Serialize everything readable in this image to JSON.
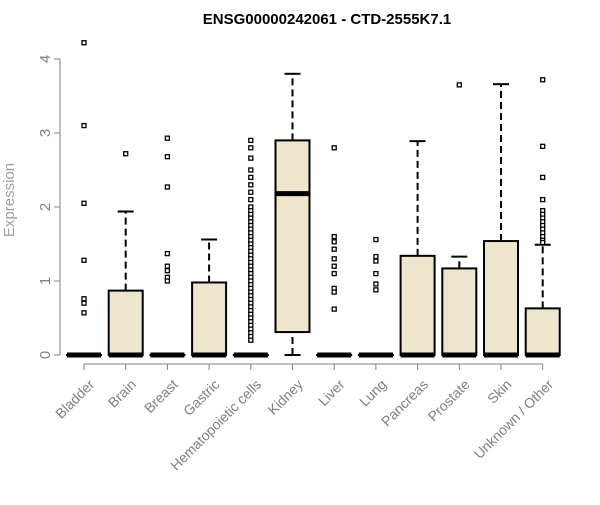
{
  "chart_data": {
    "type": "boxplot",
    "title": "ENSG00000242061 - CTD-2555K7.1",
    "ylabel": "Expression",
    "xlabel": "",
    "ylim": [
      0,
      4.2
    ],
    "yticks": [
      0,
      1,
      2,
      3,
      4
    ],
    "ytick_labels": [
      "0",
      "1",
      "2",
      "3",
      "4"
    ],
    "grid": false,
    "colors": {
      "box_fill": "#ede6cd",
      "stroke": "#000000",
      "axis": "#808080",
      "tick_text": "#808080"
    },
    "categories": [
      "Bladder",
      "Brain",
      "Breast",
      "Gastric",
      "Hematopoietic cells",
      "Kidney",
      "Liver",
      "Lung",
      "Pancreas",
      "Prostate",
      "Skin",
      "Unknown / Other"
    ],
    "boxes": [
      {
        "q1": 0,
        "median": 0,
        "q3": 0,
        "whisker_low": 0,
        "whisker_high": 0,
        "outliers": [
          4.22,
          3.1,
          2.05,
          1.28,
          0.76,
          0.7,
          0.57
        ]
      },
      {
        "q1": 0,
        "median": 0,
        "q3": 0.87,
        "whisker_low": 0,
        "whisker_high": 1.94,
        "outliers": [
          2.72
        ]
      },
      {
        "q1": 0,
        "median": 0,
        "q3": 0,
        "whisker_low": 0,
        "whisker_high": 0,
        "outliers": [
          2.93,
          2.68,
          2.27,
          1.37,
          1.2,
          1.14,
          1.05,
          1.0
        ]
      },
      {
        "q1": 0,
        "median": 0,
        "q3": 0.98,
        "whisker_low": 0,
        "whisker_high": 1.56,
        "outliers": []
      },
      {
        "q1": 0,
        "median": 0,
        "q3": 0,
        "whisker_low": 0,
        "whisker_high": 0,
        "outliers": [
          2.9,
          2.8,
          2.66,
          2.5,
          2.4,
          2.3,
          2.2,
          2.1,
          2.0,
          1.95,
          1.9,
          1.85,
          1.8,
          1.75,
          1.7,
          1.65,
          1.6,
          1.55,
          1.5,
          1.45,
          1.4,
          1.35,
          1.3,
          1.25,
          1.2,
          1.15,
          1.1,
          1.05,
          1.0,
          0.95,
          0.9,
          0.85,
          0.8,
          0.75,
          0.7,
          0.65,
          0.6,
          0.55,
          0.5,
          0.45,
          0.4,
          0.35,
          0.3,
          0.25,
          0.2
        ]
      },
      {
        "q1": 0.31,
        "median": 2.18,
        "q3": 2.9,
        "whisker_low": 0,
        "whisker_high": 3.8,
        "outliers": []
      },
      {
        "q1": 0,
        "median": 0,
        "q3": 0,
        "whisker_low": 0,
        "whisker_high": 0,
        "outliers": [
          2.8,
          1.6,
          1.53,
          1.43,
          1.3,
          1.2,
          1.1,
          0.9,
          0.85,
          0.62
        ]
      },
      {
        "q1": 0,
        "median": 0,
        "q3": 0,
        "whisker_low": 0,
        "whisker_high": 0,
        "outliers": [
          1.56,
          1.33,
          1.27,
          1.1,
          0.96,
          0.88
        ]
      },
      {
        "q1": 0,
        "median": 0,
        "q3": 1.34,
        "whisker_low": 0,
        "whisker_high": 2.89,
        "outliers": []
      },
      {
        "q1": 0,
        "median": 0,
        "q3": 1.17,
        "whisker_low": 0,
        "whisker_high": 1.33,
        "outliers": [
          3.65
        ]
      },
      {
        "q1": 0,
        "median": 0,
        "q3": 1.54,
        "whisker_low": 0,
        "whisker_high": 3.66,
        "outliers": []
      },
      {
        "q1": 0,
        "median": 0,
        "q3": 0.63,
        "whisker_low": 0,
        "whisker_high": 1.49,
        "outliers": [
          3.72,
          2.82,
          2.4,
          2.1,
          1.95,
          1.9,
          1.85,
          1.8,
          1.75,
          1.7,
          1.65,
          1.6,
          1.55,
          1.52
        ]
      }
    ]
  }
}
